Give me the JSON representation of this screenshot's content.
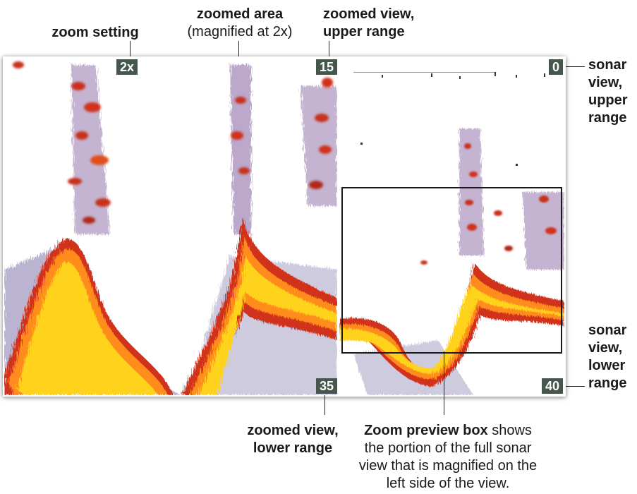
{
  "callouts": {
    "zoom_setting": "zoom setting",
    "zoomed_area_title": "zoomed area",
    "zoomed_area_sub": "(magnified at 2x)",
    "zoomed_view_upper_1": "zoomed view,",
    "zoomed_view_upper_2": "upper range",
    "zoomed_view_lower_1": "zoomed view,",
    "zoomed_view_lower_2": "lower range",
    "sonar_upper_1": "sonar",
    "sonar_upper_2": "view,",
    "sonar_upper_3": "upper",
    "sonar_upper_4": "range",
    "sonar_lower_1": "sonar",
    "sonar_lower_2": "view,",
    "sonar_lower_3": "lower",
    "sonar_lower_4": "range",
    "preview_bold": "Zoom preview box",
    "preview_rest_1": " shows",
    "preview_line_2": "the portion of the full sonar",
    "preview_line_3": "view that is magnified on the",
    "preview_line_4": "left side of the view."
  },
  "badges": {
    "zoom_level": "2x",
    "zoomed_upper": "15",
    "zoomed_lower": "35",
    "sonar_upper": "0",
    "sonar_lower": "40"
  },
  "colors": {
    "badge_bg": "#45564d",
    "bottom_core": "#ffd21a",
    "bottom_mid": "#ff8c1a",
    "bottom_edge": "#d0301a",
    "clutter": "#3b2a7a"
  }
}
